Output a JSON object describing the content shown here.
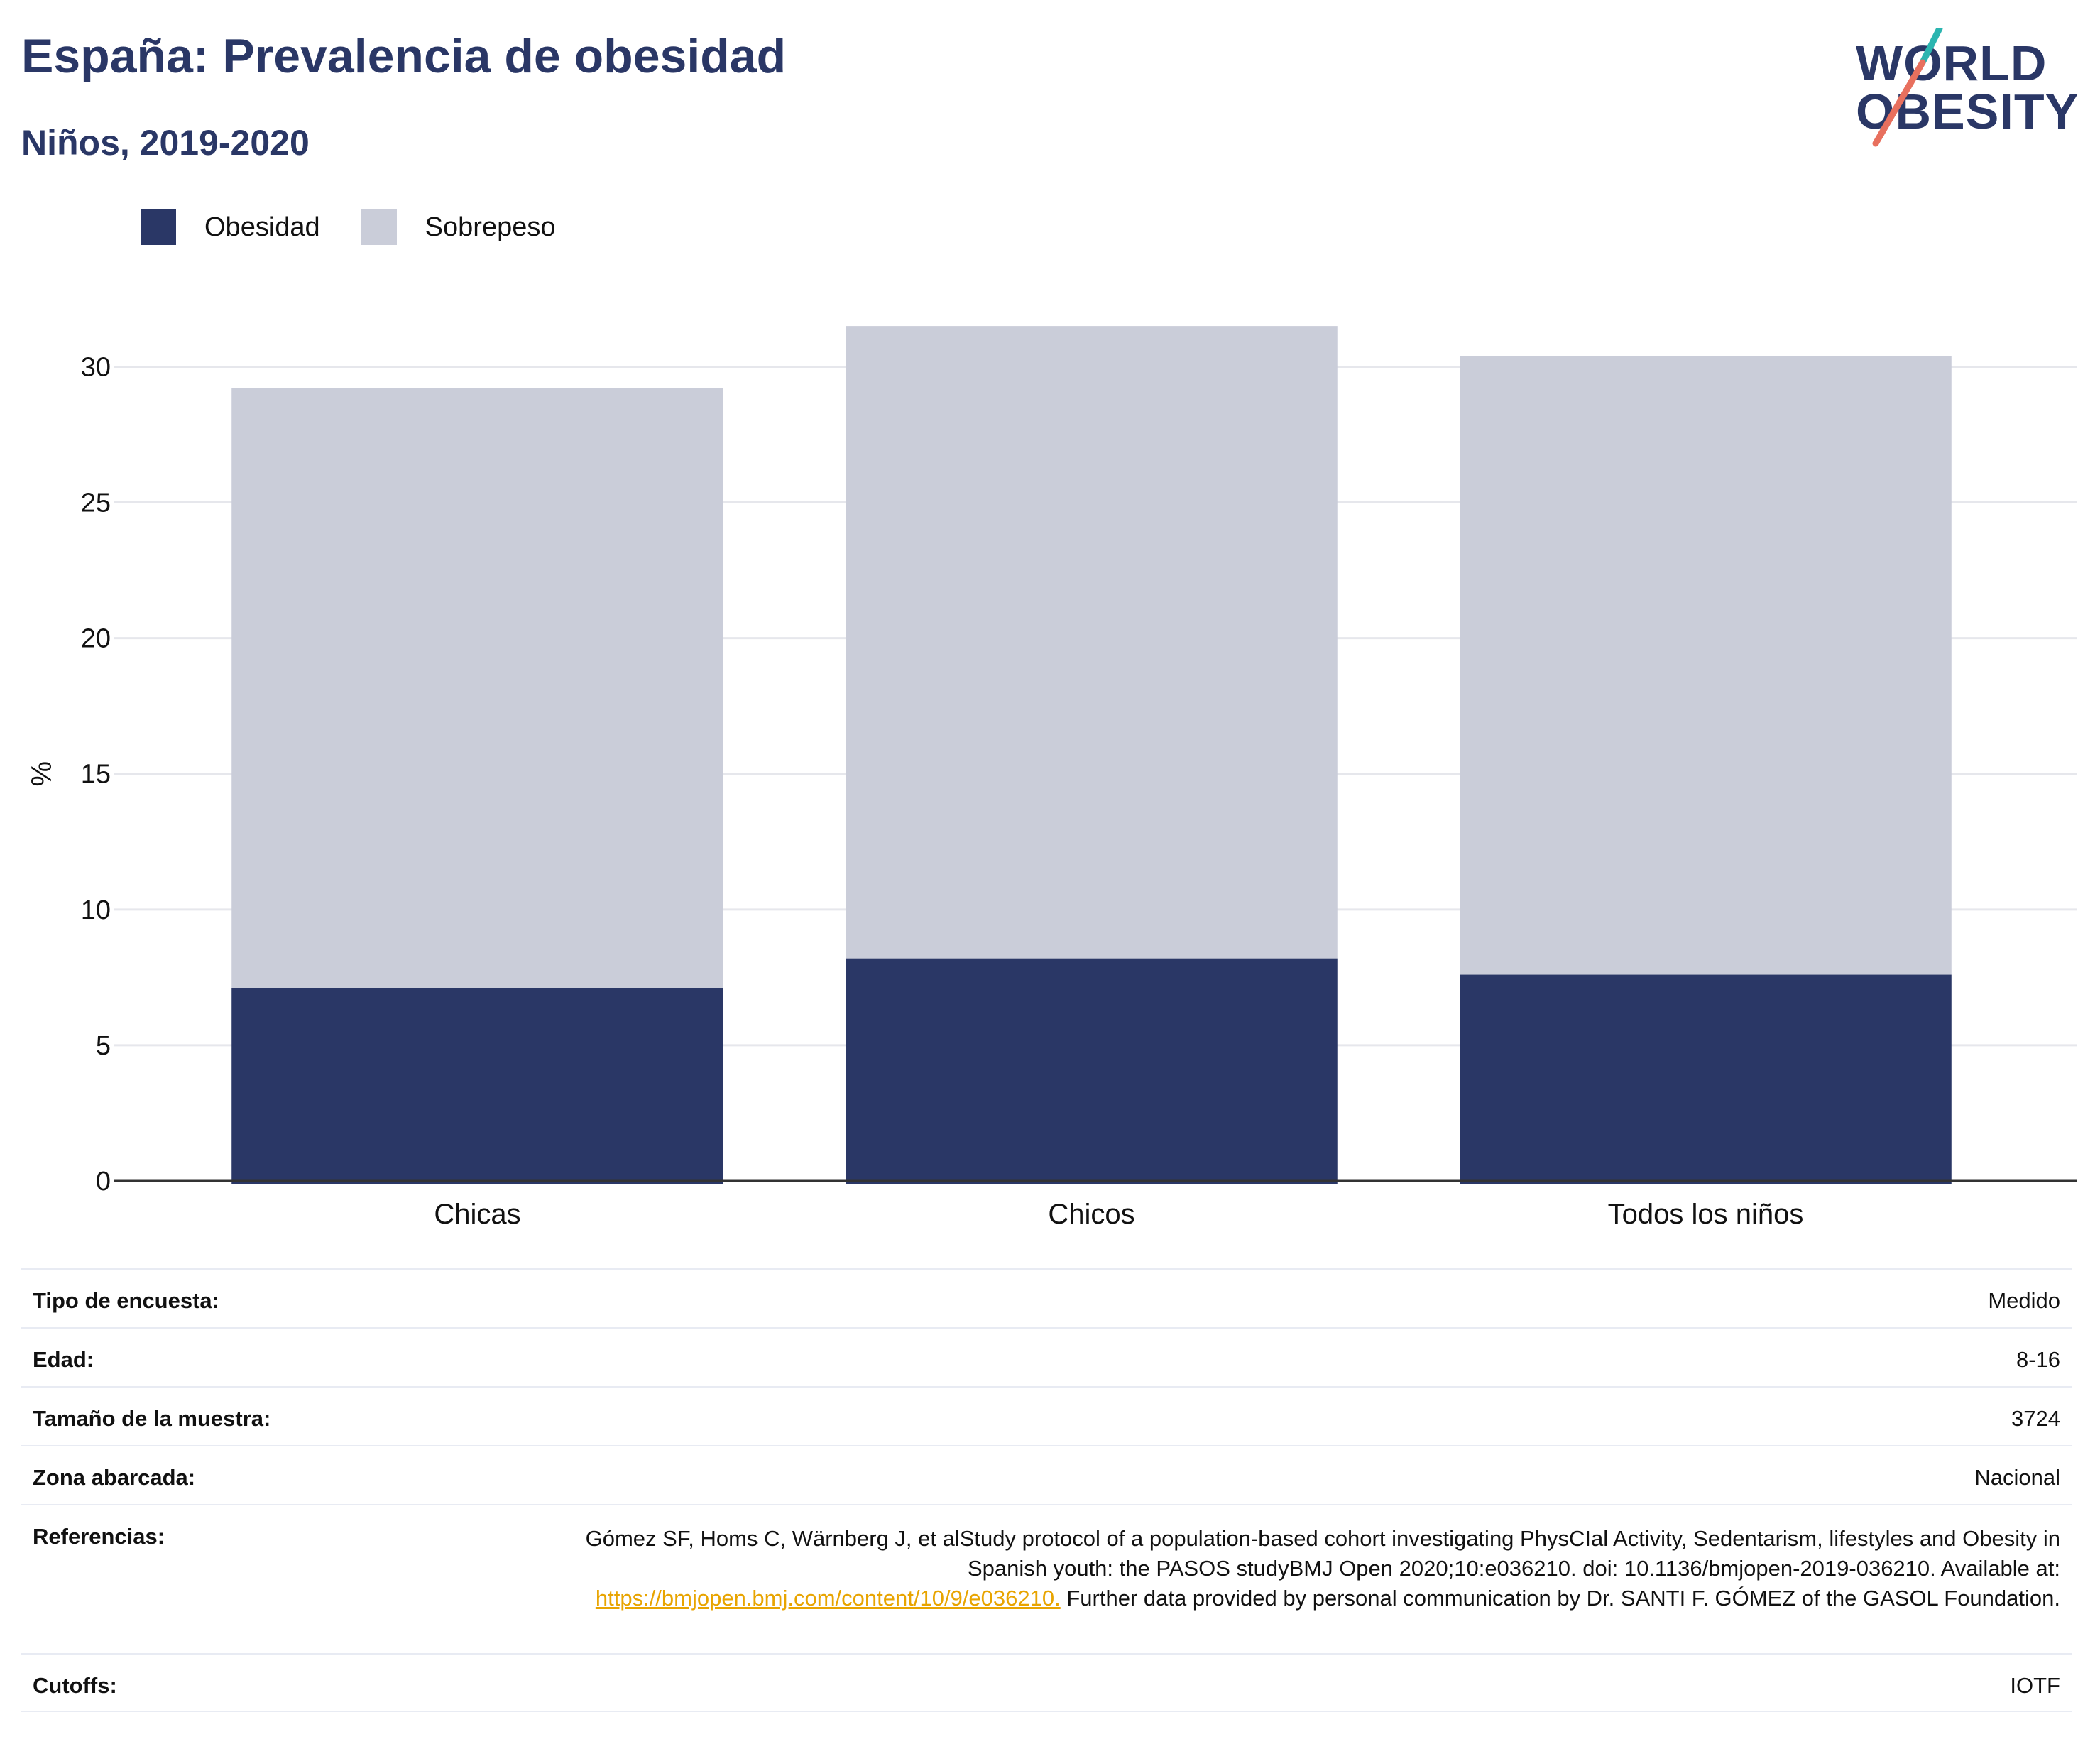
{
  "header": {
    "title": "España: Prevalencia de obesidad",
    "subtitle": "Niños, 2019-2020"
  },
  "logo": {
    "line1": "WORLD",
    "line2": "OBESITY",
    "icon": "world-obesity-logo"
  },
  "legend": [
    {
      "label": "Obesidad",
      "color": "#2a3766"
    },
    {
      "label": "Sobrepeso",
      "color": "#cacdd9"
    }
  ],
  "chart_data": {
    "type": "bar",
    "stacked": true,
    "categories": [
      "Chicas",
      "Chicos",
      "Todos los niños"
    ],
    "series": [
      {
        "name": "Obesidad",
        "color": "#2a3766",
        "values": [
          7.1,
          8.2,
          7.6
        ]
      },
      {
        "name": "Sobrepeso",
        "color": "#cacdd9",
        "values": [
          22.1,
          23.3,
          22.8
        ]
      }
    ],
    "ylabel": "%",
    "ylim": [
      0,
      32
    ],
    "yticks": [
      0,
      5,
      10,
      15,
      20,
      25,
      30
    ],
    "grid": true,
    "legend_position": "top-left"
  },
  "info": {
    "rows": [
      {
        "key": "Tipo de encuesta:",
        "value": "Medido"
      },
      {
        "key": "Edad:",
        "value": "8-16"
      },
      {
        "key": "Tamaño de la muestra:",
        "value": "3724"
      },
      {
        "key": "Zona abarcada:",
        "value": "Nacional"
      }
    ],
    "references": {
      "key": "Referencias:",
      "text_before": "Gómez SF, Homs C, Wärnberg J, et alStudy protocol of a population-based cohort investigating PhysCIal Activity, Sedentarism, lifestyles and Obesity in Spanish youth: the PASOS studyBMJ Open 2020;10:e036210. doi: 10.1136/bmjopen-2019-036210. Available at: ",
      "link": "https://bmjopen.bmj.com/content/10/9/e036210.",
      "text_after": " Further data provided by personal communication by Dr. SANTI F. GÓMEZ of the GASOL Foundation."
    },
    "cutoffs": {
      "key": "Cutoffs:",
      "value": "IOTF"
    }
  }
}
